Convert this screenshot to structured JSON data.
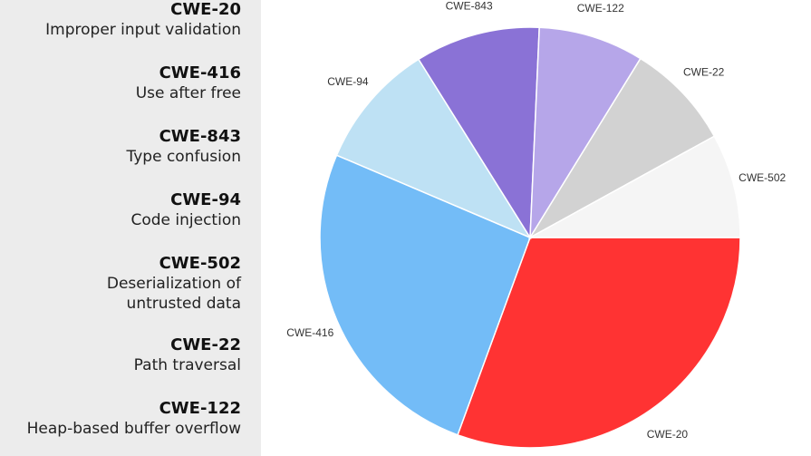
{
  "legend": [
    {
      "code": "CWE-20",
      "desc": "Improper input validation"
    },
    {
      "code": "CWE-416",
      "desc": "Use after free"
    },
    {
      "code": "CWE-843",
      "desc": "Type confusion"
    },
    {
      "code": "CWE-94",
      "desc": "Code injection"
    },
    {
      "code": "CWE-502",
      "desc": "Deserialization of untrusted data"
    },
    {
      "code": "CWE-22",
      "desc": "Path traversal"
    },
    {
      "code": "CWE-122",
      "desc": "Heap-based buffer overflow"
    }
  ],
  "chart_data": {
    "type": "pie",
    "categories": [
      "CWE-20",
      "CWE-416",
      "CWE-94",
      "CWE-843",
      "CWE-122",
      "CWE-22",
      "CWE-502"
    ],
    "values": [
      30.6,
      25.8,
      9.7,
      9.6,
      8.1,
      8.2,
      8.0
    ],
    "colors": [
      "#ff3333",
      "#73bcf7",
      "#bee1f4",
      "#8a72d6",
      "#b6a6e9",
      "#d2d2d2",
      "#f5f5f5"
    ],
    "start_angle": "3 o'clock, clockwise"
  }
}
